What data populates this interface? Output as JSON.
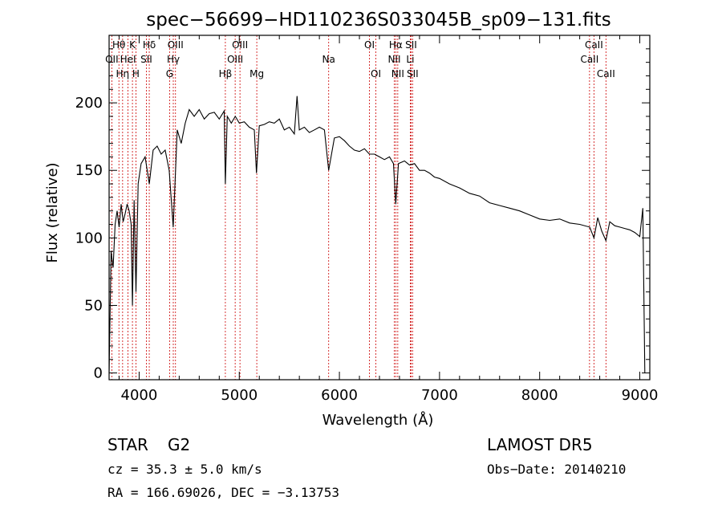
{
  "chart_data": {
    "type": "line",
    "title": "spec−56699−HD110236S033045B_sp09−131.fits",
    "xlabel": "Wavelength (Å)",
    "ylabel": "Flux (relative)",
    "xlim": [
      3700,
      9100
    ],
    "ylim": [
      -5,
      250
    ],
    "xticks": [
      4000,
      5000,
      6000,
      7000,
      8000,
      9000
    ],
    "yticks": [
      0,
      50,
      100,
      150,
      200
    ],
    "grid": false,
    "series": [
      {
        "color": "#000000",
        "x": [
          3700,
          3720,
          3740,
          3760,
          3780,
          3800,
          3820,
          3840,
          3860,
          3880,
          3900,
          3920,
          3933,
          3950,
          3968,
          3990,
          4020,
          4060,
          4101,
          4140,
          4180,
          4220,
          4260,
          4300,
          4340,
          4380,
          4420,
          4460,
          4500,
          4550,
          4600,
          4650,
          4700,
          4750,
          4800,
          4850,
          4861,
          4880,
          4920,
          4960,
          5000,
          5050,
          5100,
          5150,
          5172,
          5200,
          5250,
          5300,
          5350,
          5400,
          5450,
          5500,
          5550,
          5577,
          5600,
          5650,
          5700,
          5750,
          5800,
          5850,
          5893,
          5950,
          6000,
          6050,
          6100,
          6150,
          6200,
          6250,
          6300,
          6350,
          6400,
          6450,
          6500,
          6540,
          6563,
          6590,
          6650,
          6700,
          6750,
          6800,
          6850,
          6900,
          6950,
          7000,
          7100,
          7200,
          7300,
          7400,
          7500,
          7600,
          7700,
          7800,
          7900,
          8000,
          8100,
          8200,
          8300,
          8400,
          8500,
          8542,
          8580,
          8620,
          8662,
          8700,
          8750,
          8800,
          8850,
          8900,
          8950,
          9000,
          9030,
          9050
        ],
        "y": [
          0,
          90,
          78,
          110,
          120,
          108,
          125,
          112,
          118,
          125,
          120,
          110,
          50,
          128,
          60,
          140,
          155,
          160,
          140,
          165,
          168,
          162,
          165,
          150,
          108,
          180,
          170,
          185,
          195,
          190,
          195,
          188,
          192,
          193,
          188,
          194,
          140,
          190,
          185,
          190,
          185,
          186,
          182,
          180,
          148,
          183,
          184,
          186,
          185,
          188,
          180,
          182,
          177,
          205,
          180,
          182,
          178,
          180,
          182,
          180,
          150,
          174,
          175,
          172,
          168,
          165,
          164,
          166,
          162,
          162,
          160,
          158,
          160,
          155,
          125,
          155,
          157,
          154,
          155,
          150,
          150,
          148,
          145,
          144,
          140,
          137,
          133,
          131,
          126,
          124,
          122,
          120,
          117,
          114,
          113,
          114,
          111,
          110,
          108,
          100,
          115,
          105,
          98,
          112,
          109,
          108,
          107,
          106,
          104,
          101,
          122,
          0
        ]
      }
    ],
    "line_markers": [
      {
        "x": 3727,
        "labels": [
          "OII"
        ],
        "row": 1
      },
      {
        "x": 3798,
        "labels": [
          "Hθ"
        ],
        "row": 0
      },
      {
        "x": 3835,
        "labels": [
          "Hη"
        ],
        "row": 2
      },
      {
        "x": 3889,
        "labels": [
          "HeI"
        ],
        "row": 1
      },
      {
        "x": 3933,
        "labels": [
          "K"
        ],
        "row": 0
      },
      {
        "x": 3968,
        "labels": [
          "H"
        ],
        "row": 2
      },
      {
        "x": 4101,
        "labels": [
          "Hδ"
        ],
        "row": 0
      },
      {
        "x": 4072,
        "labels": [
          "SII"
        ],
        "row": 1
      },
      {
        "x": 4304,
        "labels": [
          "G"
        ],
        "row": 2
      },
      {
        "x": 4341,
        "labels": [
          "Hγ"
        ],
        "row": 1
      },
      {
        "x": 4363,
        "labels": [
          "OIII"
        ],
        "row": 0
      },
      {
        "x": 4861,
        "labels": [
          "Hβ"
        ],
        "row": 2
      },
      {
        "x": 4959,
        "labels": [
          "OIII"
        ],
        "row": 1
      },
      {
        "x": 5007,
        "labels": [
          "OIII"
        ],
        "row": 0
      },
      {
        "x": 5175,
        "labels": [
          "Mg"
        ],
        "row": 2
      },
      {
        "x": 5893,
        "labels": [
          "Na"
        ],
        "row": 1
      },
      {
        "x": 6300,
        "labels": [
          "OI"
        ],
        "row": 0
      },
      {
        "x": 6364,
        "labels": [
          "OI"
        ],
        "row": 2
      },
      {
        "x": 6548,
        "labels": [
          "NII"
        ],
        "row": 1
      },
      {
        "x": 6563,
        "labels": [
          "Hα"
        ],
        "row": 0
      },
      {
        "x": 6583,
        "labels": [
          "NII"
        ],
        "row": 2
      },
      {
        "x": 6708,
        "labels": [
          "Li"
        ],
        "row": 1
      },
      {
        "x": 6716,
        "labels": [
          "SII"
        ],
        "row": 0
      },
      {
        "x": 6731,
        "labels": [
          "SII"
        ],
        "row": 2
      },
      {
        "x": 8498,
        "labels": [
          "CaII"
        ],
        "row": 1
      },
      {
        "x": 8542,
        "labels": [
          "CaII"
        ],
        "row": 0
      },
      {
        "x": 8662,
        "labels": [
          "CaII"
        ],
        "row": 2
      }
    ],
    "marker_color": "#cc0000"
  },
  "info": {
    "class_label": "STAR",
    "subclass": "G2",
    "survey": "LAMOST DR5",
    "cz": "cz = 35.3 ± 5.0 km/s",
    "obs_date": "Obs−Date: 20140210",
    "coords": "RA = 166.69026, DEC =  −3.13753"
  }
}
